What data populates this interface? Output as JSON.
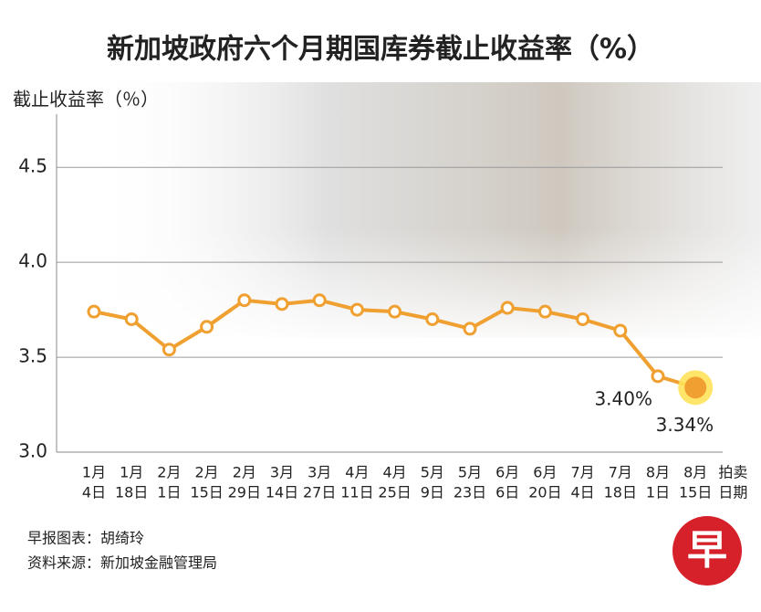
{
  "chart_data": {
    "type": "line",
    "title": "新加坡政府六个月期国库券截止收益率（%）",
    "y_label": "截止收益率（％）",
    "x_label": [
      "拍卖",
      "日期"
    ],
    "categories": [
      [
        "1月",
        "4日"
      ],
      [
        "1月",
        "18日"
      ],
      [
        "2月",
        "1日"
      ],
      [
        "2月",
        "15日"
      ],
      [
        "2月",
        "29日"
      ],
      [
        "3月",
        "14日"
      ],
      [
        "3月",
        "27日"
      ],
      [
        "4月",
        "11日"
      ],
      [
        "4月",
        "25日"
      ],
      [
        "5月",
        "9日"
      ],
      [
        "5月",
        "23日"
      ],
      [
        "6月",
        "6日"
      ],
      [
        "6月",
        "20日"
      ],
      [
        "7月",
        "4日"
      ],
      [
        "7月",
        "18日"
      ],
      [
        "8月",
        "1日"
      ],
      [
        "8月",
        "15日"
      ]
    ],
    "series": [
      {
        "color": "#f0a030",
        "values": [
          3.74,
          3.7,
          3.54,
          3.66,
          3.8,
          3.78,
          3.8,
          3.75,
          3.74,
          3.7,
          3.65,
          3.76,
          3.74,
          3.7,
          3.64,
          3.4,
          3.34
        ],
        "value_labels": [
          null,
          null,
          null,
          null,
          null,
          null,
          null,
          null,
          null,
          null,
          null,
          null,
          null,
          null,
          null,
          "3.40%",
          "3.34%"
        ]
      }
    ],
    "ylim": [
      3.0,
      4.78
    ],
    "yticks": [
      {
        "value": 3.0,
        "label": "3.0"
      },
      3.5,
      {
        "value": 4.0,
        "label": "4.0"
      },
      4.5
    ],
    "grid": true,
    "credit": "早报图表：胡绮玲",
    "source": "资料来源：新加坡金融管理局",
    "logo": "早"
  }
}
